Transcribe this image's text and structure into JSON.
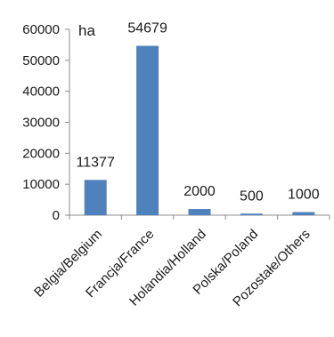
{
  "chart_data": {
    "type": "bar",
    "unit_label": "ha",
    "categories": [
      "Belgia/Belgium",
      "Francja/France",
      "Holandia/Holland",
      "Polska/Poland",
      "Pozostałe/Others"
    ],
    "values": [
      11377,
      54679,
      2000,
      500,
      1000
    ],
    "data_labels": [
      "11377",
      "54679",
      "2000",
      "500",
      "1000"
    ],
    "ylim": [
      0,
      60000
    ],
    "yticks": [
      0,
      10000,
      20000,
      30000,
      40000,
      50000,
      60000
    ],
    "ytick_labels": [
      "0",
      "10000",
      "20000",
      "30000",
      "40000",
      "50000",
      "60000"
    ],
    "bar_color": "#4f81bd",
    "grid": false,
    "legend": "none"
  }
}
